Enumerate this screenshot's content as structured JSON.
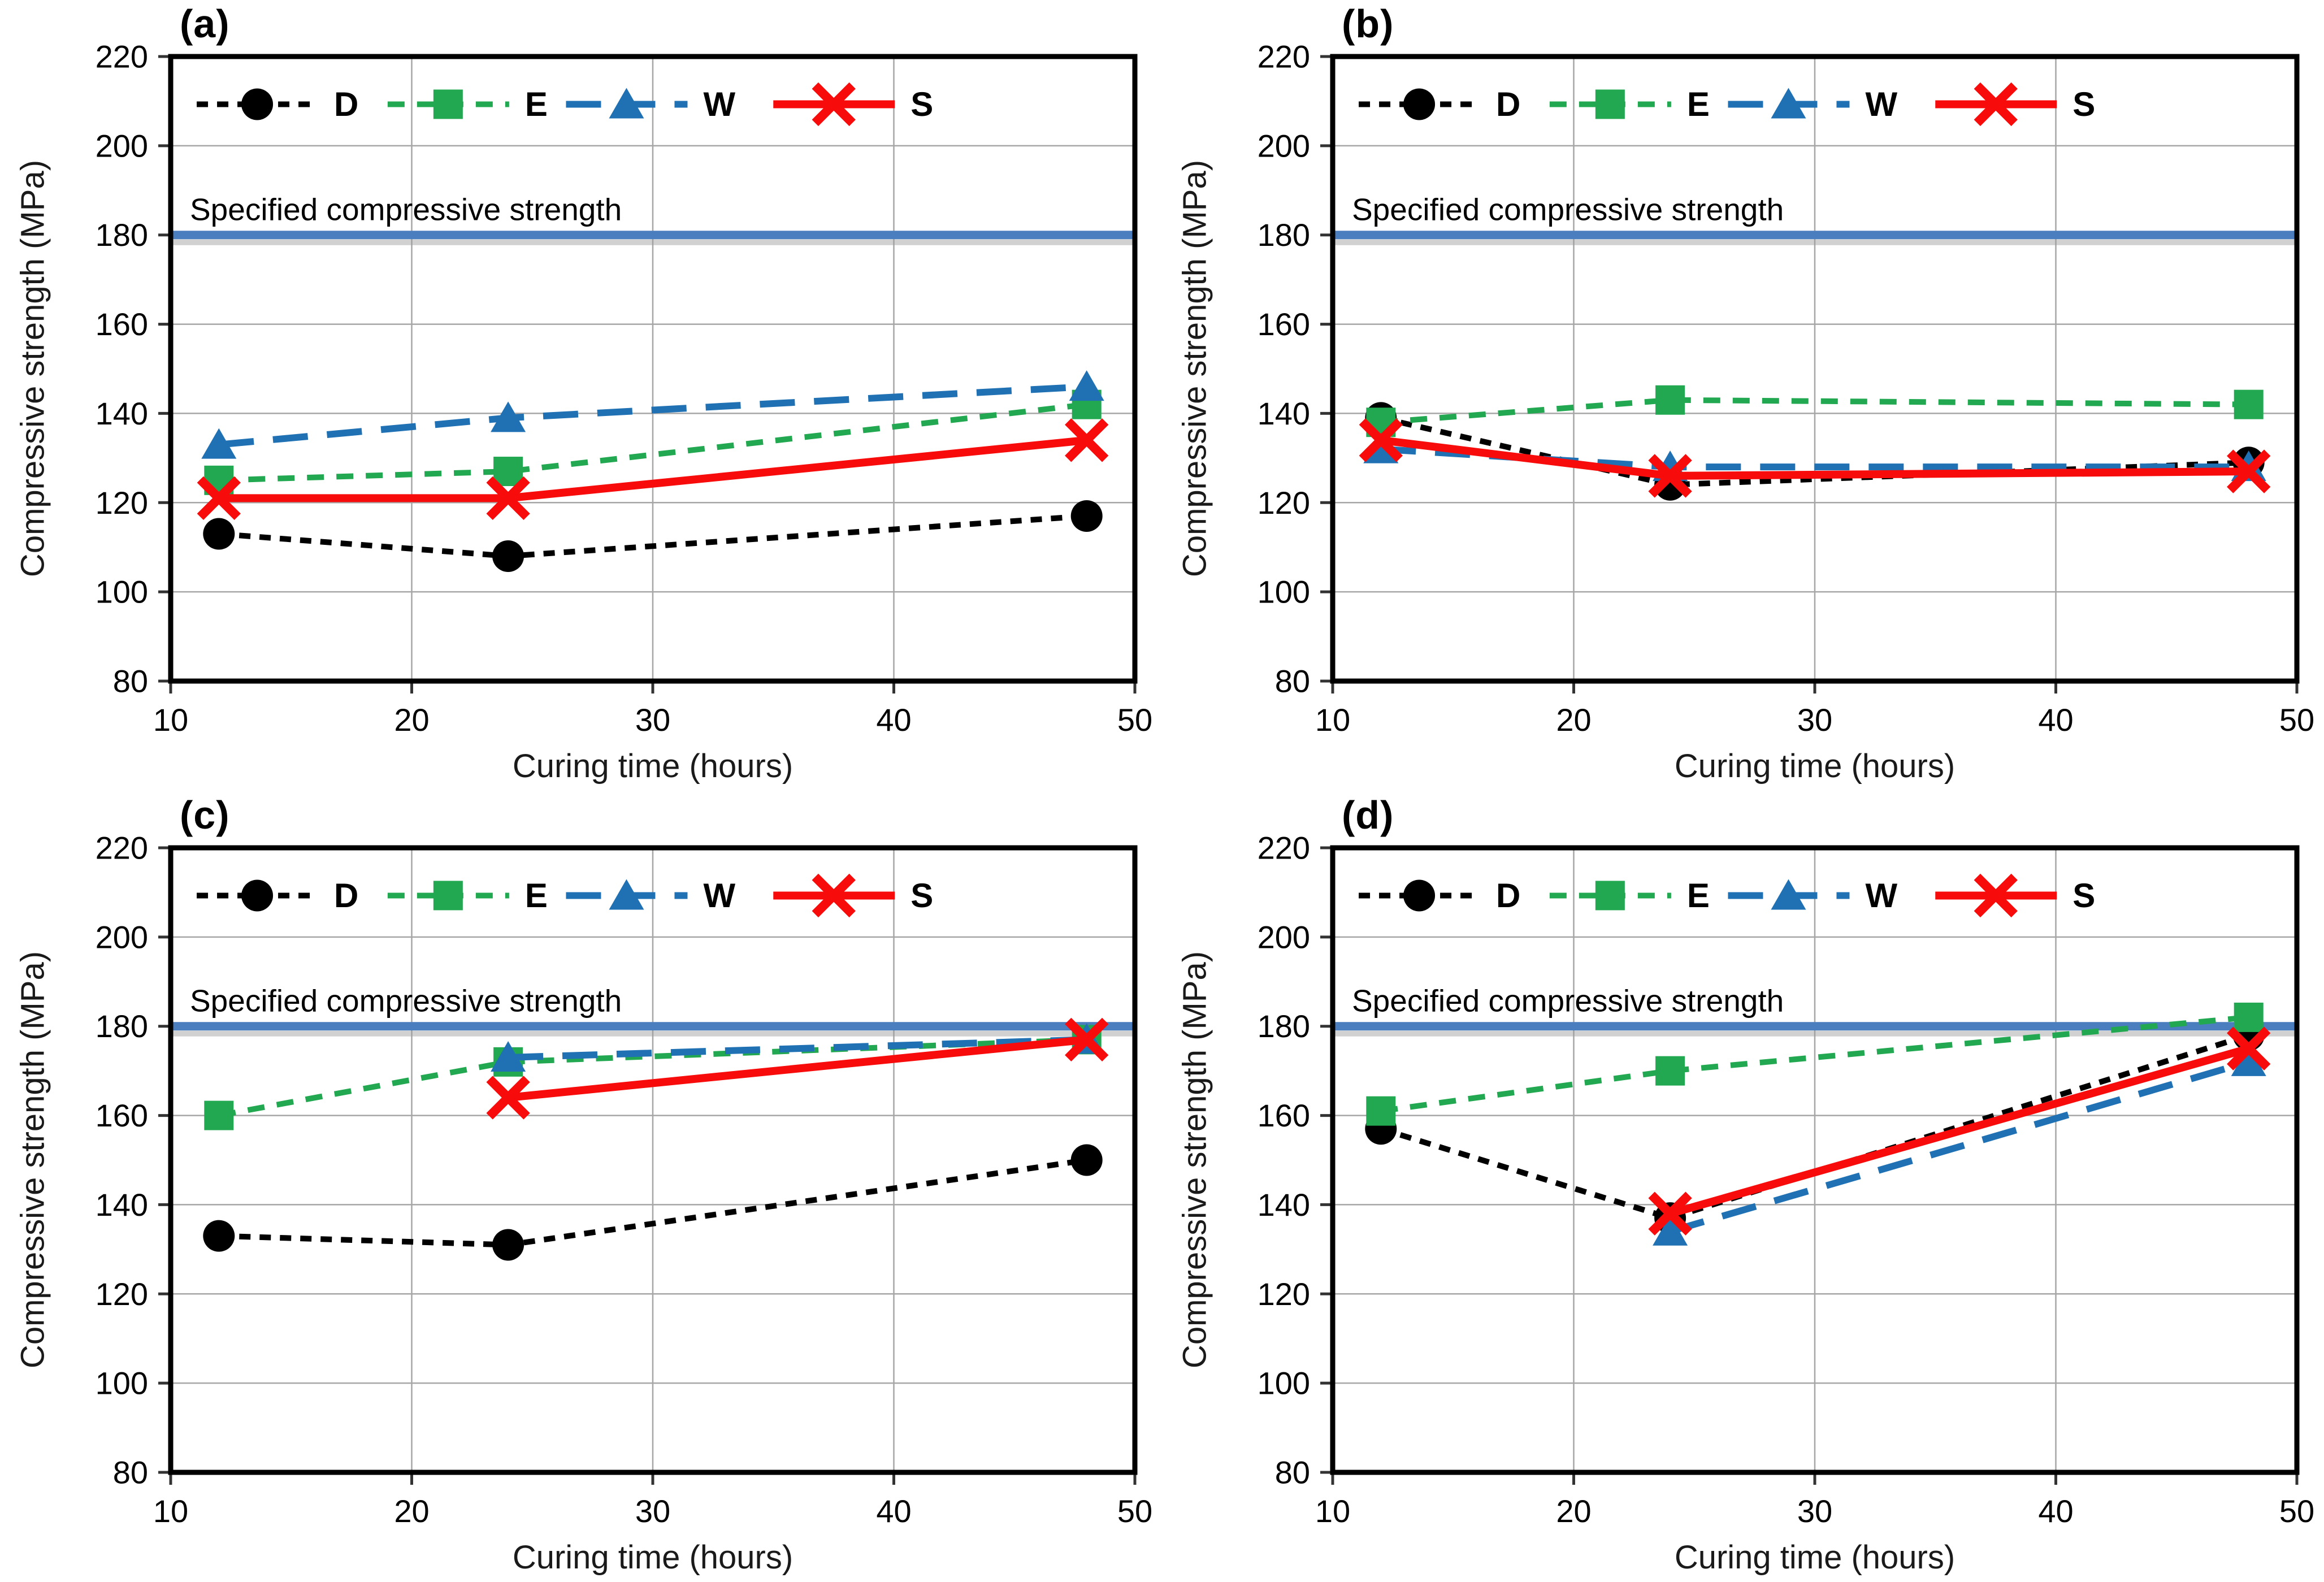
{
  "axes": {
    "xlabel": "Curing time (hours)",
    "ylabel": "Compressive strength (MPa)",
    "xlim": [
      10,
      50
    ],
    "ylim": [
      80,
      220
    ],
    "xticks": [
      10,
      20,
      30,
      40,
      50
    ],
    "yticks": [
      80,
      100,
      120,
      140,
      160,
      180,
      200,
      220
    ],
    "grid": true,
    "legend_position": "top-inside"
  },
  "reference_line": {
    "value": 180,
    "label": "Specified compressive strength",
    "color": "#4A7EBE"
  },
  "colors": {
    "D": "#000000",
    "E": "#22A850",
    "W": "#1F71B4",
    "S": "#F80B0B",
    "grid": "#A6A6A6",
    "border": "#000000",
    "reference_shadow": "#9B9B9B"
  },
  "series_styles": {
    "D": {
      "marker": "circle",
      "line": "dotted",
      "color": "#000000"
    },
    "E": {
      "marker": "square",
      "line": "dashed",
      "color": "#22A850"
    },
    "W": {
      "marker": "triangle",
      "line": "longdash",
      "color": "#1F71B4"
    },
    "S": {
      "marker": "x",
      "line": "solid",
      "color": "#F80B0B"
    }
  },
  "legend": [
    {
      "key": "D",
      "label": "D"
    },
    {
      "key": "E",
      "label": "E"
    },
    {
      "key": "W",
      "label": "W"
    },
    {
      "key": "S",
      "label": "S"
    }
  ],
  "chart_data": [
    {
      "type": "line",
      "panel": "(a)",
      "x": [
        12,
        24,
        48
      ],
      "series": [
        {
          "name": "D",
          "values": [
            113,
            108,
            117
          ]
        },
        {
          "name": "E",
          "values": [
            125,
            127,
            142
          ]
        },
        {
          "name": "W",
          "values": [
            133,
            139,
            146
          ]
        },
        {
          "name": "S",
          "values": [
            121,
            121,
            134
          ]
        }
      ]
    },
    {
      "type": "line",
      "panel": "(b)",
      "x": [
        12,
        24,
        48
      ],
      "series": [
        {
          "name": "D",
          "values": [
            139,
            124,
            129
          ]
        },
        {
          "name": "E",
          "values": [
            138,
            143,
            142
          ]
        },
        {
          "name": "W",
          "values": [
            132,
            128,
            128
          ]
        },
        {
          "name": "S",
          "values": [
            134,
            126,
            127
          ]
        }
      ]
    },
    {
      "type": "line",
      "panel": "(c)",
      "x": [
        12,
        24,
        48
      ],
      "series": [
        {
          "name": "D",
          "values": [
            133,
            131,
            150
          ]
        },
        {
          "name": "E",
          "values": [
            160,
            172,
            177
          ]
        },
        {
          "name": "W",
          "values": [
            null,
            173,
            177
          ]
        },
        {
          "name": "S",
          "values": [
            null,
            164,
            177
          ]
        }
      ]
    },
    {
      "type": "line",
      "panel": "(d)",
      "x": [
        12,
        24,
        48
      ],
      "series": [
        {
          "name": "D",
          "values": [
            157,
            137,
            178
          ]
        },
        {
          "name": "E",
          "values": [
            161,
            170,
            182
          ]
        },
        {
          "name": "W",
          "values": [
            null,
            134,
            172
          ]
        },
        {
          "name": "S",
          "values": [
            null,
            138,
            175
          ]
        }
      ]
    }
  ]
}
